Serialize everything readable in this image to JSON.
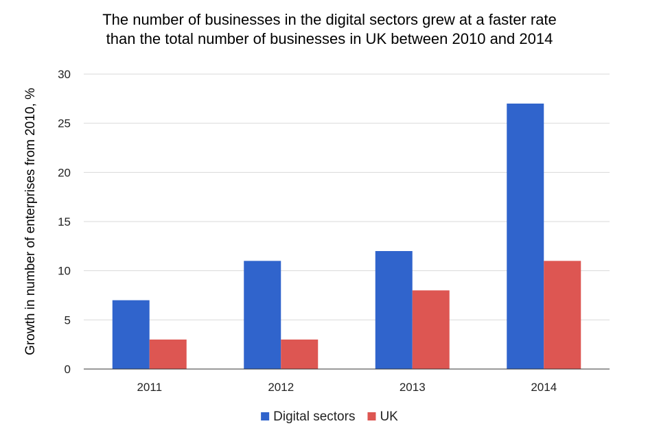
{
  "chart_data": {
    "type": "bar",
    "title_lines": [
      "The number of businesses in the digital sectors grew at a faster rate",
      "than the total number of businesses in UK between 2010 and 2014"
    ],
    "xlabel": "",
    "ylabel": "Growth in number of enterprises from 2010, %",
    "categories": [
      "2011",
      "2012",
      "2013",
      "2014"
    ],
    "series": [
      {
        "name": "Digital sectors",
        "color": "#3064CC",
        "values": [
          7,
          11,
          12,
          27
        ]
      },
      {
        "name": "UK",
        "color": "#DD5652",
        "values": [
          3,
          3,
          8,
          11
        ]
      }
    ],
    "ylim": [
      0,
      30
    ],
    "yticks": [
      "0",
      "5",
      "10",
      "15",
      "20",
      "25",
      "30"
    ],
    "grid": true,
    "legend_position": "bottom"
  }
}
